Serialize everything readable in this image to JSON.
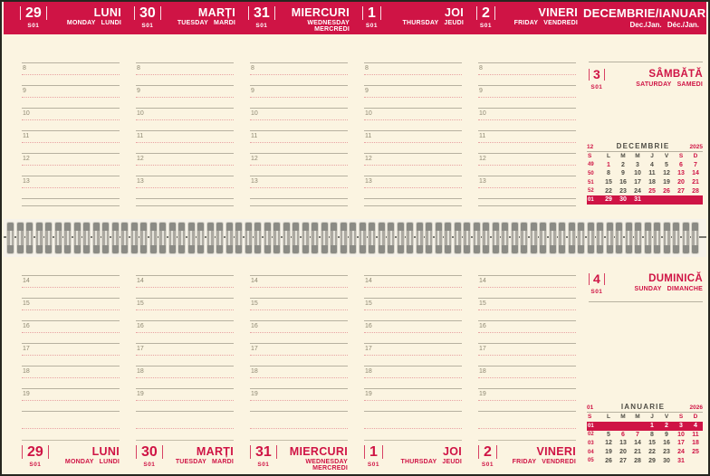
{
  "header": {
    "month_title": "DECEMBRIE/IANUARIE",
    "month_sub": "Dec./Jan. Déc./Jan.",
    "days": [
      {
        "date": "29",
        "week": "S01",
        "name": "LUNI",
        "sub": "MONDAY LUNDI"
      },
      {
        "date": "30",
        "week": "S01",
        "name": "MARȚI",
        "sub": "TUESDAY MARDI"
      },
      {
        "date": "31",
        "week": "S01",
        "name": "MIERCURI",
        "sub": "WEDNESDAY MERCREDI"
      },
      {
        "date": "1",
        "week": "S01",
        "name": "JOI",
        "sub": "THURSDAY JEUDI"
      },
      {
        "date": "2",
        "week": "S01",
        "name": "VINERI",
        "sub": "FRIDAY VENDREDI"
      }
    ]
  },
  "grid": {
    "hours_top": [
      "8",
      "9",
      "10",
      "11",
      "12",
      "13"
    ],
    "hours_bottom": [
      "14",
      "15",
      "16",
      "17",
      "18",
      "19"
    ]
  },
  "weekend": {
    "saturday": {
      "date": "3",
      "week": "S01",
      "name": "SÂMBĂTĂ",
      "sub": "SATURDAY SAMEDI"
    },
    "sunday": {
      "date": "4",
      "week": "S01",
      "name": "DUMINICĂ",
      "sub": "SUNDAY DIMANCHE"
    }
  },
  "mini_calendars": [
    {
      "id": "december",
      "month_num": "12",
      "title": "DECEMBRIE",
      "year": "2025",
      "dow": [
        "S",
        "L",
        "M",
        "M",
        "J",
        "V",
        "S",
        "D"
      ],
      "dow_red": [
        true,
        false,
        false,
        false,
        false,
        false,
        true,
        true
      ],
      "rows": [
        {
          "week": "49",
          "days": [
            "1",
            "2",
            "3",
            "4",
            "5",
            "6",
            "7"
          ],
          "red": [
            true,
            false,
            false,
            false,
            false,
            true,
            true
          ],
          "highlight": false
        },
        {
          "week": "50",
          "days": [
            "8",
            "9",
            "10",
            "11",
            "12",
            "13",
            "14"
          ],
          "red": [
            false,
            false,
            false,
            false,
            false,
            true,
            true
          ],
          "highlight": false
        },
        {
          "week": "51",
          "days": [
            "15",
            "16",
            "17",
            "18",
            "19",
            "20",
            "21"
          ],
          "red": [
            false,
            false,
            false,
            false,
            false,
            true,
            true
          ],
          "highlight": false
        },
        {
          "week": "52",
          "days": [
            "22",
            "23",
            "24",
            "25",
            "26",
            "27",
            "28"
          ],
          "red": [
            false,
            false,
            false,
            true,
            true,
            true,
            true
          ],
          "highlight": false
        },
        {
          "week": "01",
          "days": [
            "29",
            "30",
            "31",
            "",
            "",
            "",
            ""
          ],
          "red": [
            false,
            false,
            false,
            false,
            false,
            false,
            false
          ],
          "highlight": true
        }
      ]
    },
    {
      "id": "january",
      "month_num": "01",
      "title": "IANUARIE",
      "year": "2026",
      "dow": [
        "S",
        "L",
        "M",
        "M",
        "J",
        "V",
        "S",
        "D"
      ],
      "dow_red": [
        true,
        false,
        false,
        false,
        false,
        false,
        true,
        true
      ],
      "rows": [
        {
          "week": "01",
          "days": [
            "",
            "",
            "",
            "1",
            "2",
            "3",
            "4"
          ],
          "red": [
            false,
            false,
            false,
            false,
            false,
            false,
            false
          ],
          "highlight": true
        },
        {
          "week": "02",
          "days": [
            "5",
            "6",
            "7",
            "8",
            "9",
            "10",
            "11"
          ],
          "red": [
            false,
            true,
            true,
            false,
            false,
            true,
            true
          ],
          "highlight": false
        },
        {
          "week": "03",
          "days": [
            "12",
            "13",
            "14",
            "15",
            "16",
            "17",
            "18"
          ],
          "red": [
            false,
            false,
            false,
            false,
            false,
            true,
            true
          ],
          "highlight": false
        },
        {
          "week": "04",
          "days": [
            "19",
            "20",
            "21",
            "22",
            "23",
            "24",
            "25"
          ],
          "red": [
            false,
            false,
            false,
            false,
            false,
            true,
            true
          ],
          "highlight": false
        },
        {
          "week": "05",
          "days": [
            "26",
            "27",
            "28",
            "29",
            "30",
            "31",
            ""
          ],
          "red": [
            false,
            false,
            false,
            false,
            false,
            true,
            false
          ],
          "highlight": false
        }
      ]
    }
  ],
  "footer": {
    "days": [
      {
        "date": "29",
        "week": "S01",
        "name": "LUNI",
        "sub": "MONDAY LUNDI"
      },
      {
        "date": "30",
        "week": "S01",
        "name": "MARȚI",
        "sub": "TUESDAY MARDI"
      },
      {
        "date": "31",
        "week": "S01",
        "name": "MIERCURI",
        "sub": "WEDNESDAY MERCREDI"
      },
      {
        "date": "1",
        "week": "S01",
        "name": "JOI",
        "sub": "THURSDAY JEUDI"
      },
      {
        "date": "2",
        "week": "S01",
        "name": "VINERI",
        "sub": "FRIDAY VENDREDI"
      }
    ]
  },
  "spiral": {
    "loop_count": 73
  },
  "colors": {
    "accent_crimson": "#cf1445",
    "page_cream": "#fbf4e1",
    "grid_line": "#b7b1a0",
    "half_hour_dotted": "#e8a3a3",
    "hour_number": "#8d8771",
    "calendar_dark_text": "#4f4d45",
    "highlight_text": "#ffffff",
    "spiral_gray": "#8b8b85"
  }
}
